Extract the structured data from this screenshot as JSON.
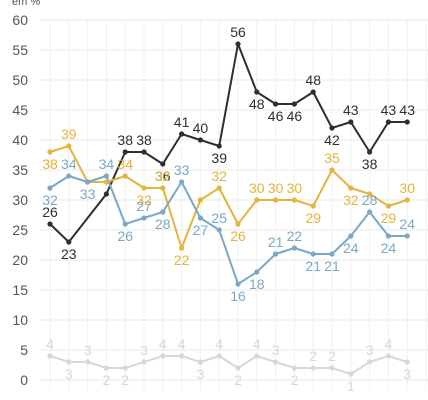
{
  "chart_data": {
    "type": "line",
    "unit_label": "em %",
    "ylim": [
      0,
      60
    ],
    "yticks": [
      0,
      5,
      10,
      15,
      20,
      25,
      30,
      35,
      40,
      45,
      50,
      55,
      60
    ],
    "grid": true,
    "x": [
      1,
      2,
      3,
      4,
      5,
      6,
      7,
      8,
      9,
      10,
      11,
      12,
      13,
      14,
      15,
      16,
      17,
      18,
      19,
      20,
      21,
      22,
      23,
      24,
      25,
      26,
      27,
      28,
      29,
      30,
      31,
      32,
      33,
      34,
      35,
      36,
      37,
      38,
      39,
      40,
      41,
      42,
      43,
      44
    ],
    "series": [
      {
        "color": "#2f2f2f",
        "points": [
          [
            1,
            26
          ],
          [
            2,
            23
          ],
          [
            4,
            31
          ],
          [
            5,
            38
          ],
          [
            6,
            38
          ],
          [
            7,
            36
          ],
          [
            8,
            41
          ],
          [
            9,
            40
          ],
          [
            10,
            39
          ],
          [
            11,
            56
          ],
          [
            12,
            48
          ],
          [
            13,
            46
          ],
          [
            14,
            46
          ],
          [
            15,
            48
          ],
          [
            16,
            42
          ],
          [
            17,
            43
          ],
          [
            18,
            38
          ],
          [
            19,
            43
          ],
          [
            20,
            43
          ]
        ],
        "labels": [
          "26",
          "23",
          "",
          "38",
          "38",
          "36",
          "41",
          "40",
          "39",
          "56",
          "48",
          "46",
          "46",
          "48",
          "42",
          "43",
          "38",
          "43",
          "43"
        ]
      },
      {
        "color": "#e5b43a",
        "points": [
          [
            1,
            38
          ],
          [
            2,
            39
          ],
          [
            3,
            33
          ],
          [
            4,
            33
          ],
          [
            5,
            34
          ],
          [
            6,
            32
          ],
          [
            7,
            32
          ],
          [
            8,
            22
          ],
          [
            9,
            30
          ],
          [
            10,
            32
          ],
          [
            11,
            26
          ],
          [
            12,
            30
          ],
          [
            13,
            30
          ],
          [
            14,
            30
          ],
          [
            15,
            29
          ],
          [
            16,
            35
          ],
          [
            17,
            32
          ],
          [
            18,
            31
          ],
          [
            19,
            29
          ],
          [
            20,
            30
          ]
        ],
        "labels": [
          "38",
          "39",
          "",
          "",
          "34",
          "32",
          "32",
          "22",
          "",
          "32",
          "26",
          "30",
          "30",
          "30",
          "29",
          "35",
          "32",
          "",
          "29",
          "30"
        ]
      },
      {
        "color": "#7aa8c8",
        "points": [
          [
            1,
            32
          ],
          [
            2,
            34
          ],
          [
            3,
            33
          ],
          [
            4,
            34
          ],
          [
            5,
            26
          ],
          [
            6,
            27
          ],
          [
            7,
            28
          ],
          [
            8,
            33
          ],
          [
            9,
            27
          ],
          [
            10,
            25
          ],
          [
            11,
            16
          ],
          [
            12,
            18
          ],
          [
            13,
            21
          ],
          [
            14,
            22
          ],
          [
            15,
            21
          ],
          [
            16,
            21
          ],
          [
            17,
            24
          ],
          [
            18,
            28
          ],
          [
            19,
            24
          ],
          [
            20,
            24
          ]
        ],
        "labels": [
          "32",
          "34",
          "33",
          "34",
          "26",
          "27",
          "28",
          "33",
          "27",
          "25",
          "16",
          "18",
          "21",
          "22",
          "21",
          "21",
          "24",
          "28",
          "24",
          "24"
        ]
      },
      {
        "color": "#d8d8d8",
        "points": [
          [
            1,
            4
          ],
          [
            2,
            3
          ],
          [
            3,
            3
          ],
          [
            4,
            2
          ],
          [
            5,
            2
          ],
          [
            6,
            3
          ],
          [
            7,
            4
          ],
          [
            8,
            4
          ],
          [
            9,
            3
          ],
          [
            10,
            4
          ],
          [
            11,
            2
          ],
          [
            12,
            4
          ],
          [
            13,
            3
          ],
          [
            14,
            2
          ],
          [
            15,
            2
          ],
          [
            16,
            2
          ],
          [
            17,
            1
          ],
          [
            18,
            3
          ],
          [
            19,
            4
          ],
          [
            20,
            3
          ]
        ],
        "labels": [
          "4",
          "3",
          "3",
          "2",
          "2",
          "3",
          "4",
          "4",
          "3",
          "4",
          "2",
          "4",
          "3",
          "2",
          "2",
          "2",
          "1",
          "3",
          "4",
          "3"
        ]
      }
    ]
  }
}
